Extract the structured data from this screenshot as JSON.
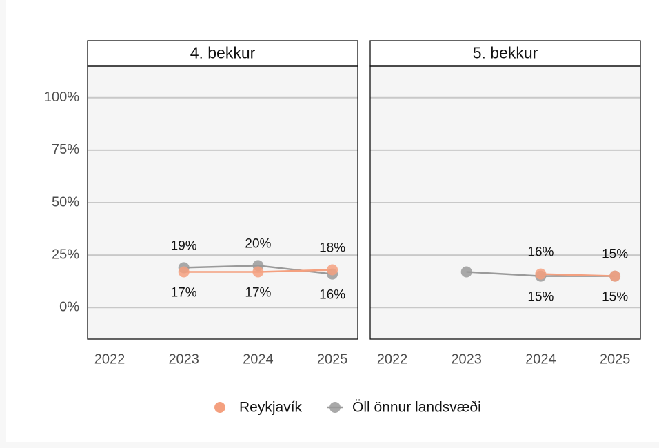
{
  "chart_data": [
    {
      "type": "line",
      "title": "4. bekkur",
      "categories": [
        "2022",
        "2023",
        "2024",
        "2025"
      ],
      "series": [
        {
          "name": "Reykjavík",
          "color": "#f4a07f",
          "values": [
            null,
            17,
            17,
            18
          ],
          "value_labels": [
            null,
            "17%",
            "17%",
            "18%"
          ]
        },
        {
          "name": "Öll önnur landsvæði",
          "color": "#9a9a9a",
          "values": [
            null,
            19,
            20,
            16
          ],
          "value_labels": [
            null,
            "19%",
            "20%",
            "16%"
          ]
        }
      ],
      "ylim": [
        -15,
        115
      ],
      "yticks": [
        {
          "value": 0,
          "label": "0%"
        },
        {
          "value": 25,
          "label": "25%"
        },
        {
          "value": 50,
          "label": "50%"
        },
        {
          "value": 75,
          "label": "75%"
        },
        {
          "value": 100,
          "label": "100%"
        }
      ],
      "grid": true
    },
    {
      "type": "line",
      "title": "5. bekkur",
      "categories": [
        "2022",
        "2023",
        "2024",
        "2025"
      ],
      "series": [
        {
          "name": "Reykjavík",
          "color": "#f4a07f",
          "values": [
            null,
            null,
            16,
            15
          ],
          "value_labels": [
            null,
            null,
            "16%",
            "15%"
          ]
        },
        {
          "name": "Öll önnur landsvæði",
          "color": "#9a9a9a",
          "values": [
            null,
            17,
            15,
            15
          ],
          "value_labels": [
            null,
            null,
            "15%",
            "15%"
          ]
        }
      ],
      "ylim": [
        -15,
        115
      ],
      "yticks": [
        {
          "value": 0,
          "label": "0%"
        },
        {
          "value": 25,
          "label": "25%"
        },
        {
          "value": 50,
          "label": "50%"
        },
        {
          "value": 75,
          "label": "75%"
        },
        {
          "value": 100,
          "label": "100%"
        }
      ],
      "grid": true
    }
  ]
}
